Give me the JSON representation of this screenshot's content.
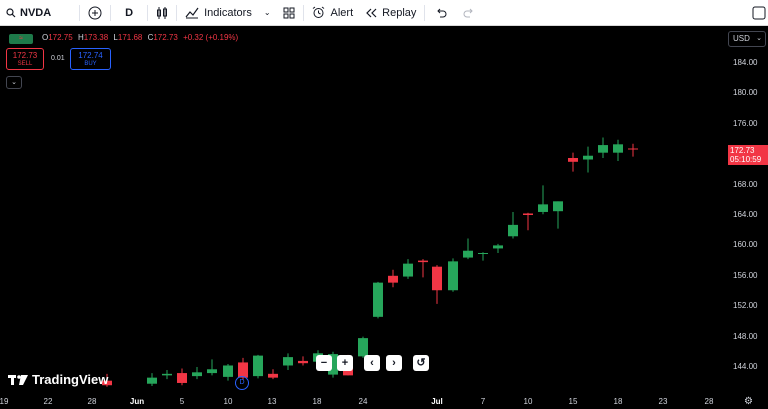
{
  "toolbar": {
    "symbol": "NVDA",
    "interval": "D",
    "indicators_label": "Indicators",
    "alert_label": "Alert",
    "replay_label": "Replay"
  },
  "legend": {
    "o_label": "O",
    "o_value": "172.75",
    "h_label": "H",
    "h_value": "173.38",
    "l_label": "L",
    "l_value": "171.68",
    "c_label": "C",
    "c_value": "172.73",
    "change": "+0.32 (+0.19%)"
  },
  "trade": {
    "sell_price": "172.73",
    "sell_label": "SELL",
    "spread": "0.01",
    "buy_price": "172.74",
    "buy_label": "BUY"
  },
  "currency": "USD",
  "price_ticks": [
    "184.00",
    "180.00",
    "176.00",
    "168.00",
    "164.00",
    "160.00",
    "156.00",
    "152.00",
    "148.00",
    "144.00"
  ],
  "last_price": {
    "value": "172.73",
    "countdown": "05:10:59"
  },
  "time_ticks": [
    "19",
    "22",
    "28",
    "Jun",
    "5",
    "10",
    "13",
    "18",
    "24",
    "Jul",
    "7",
    "10",
    "15",
    "18",
    "23",
    "28"
  ],
  "logo_text": "TradingView",
  "dividend_marker": "D",
  "colors": {
    "up": "#26a65b",
    "down": "#f23645",
    "bg": "#000000"
  },
  "chart_data": {
    "type": "candlestick",
    "y_axis_ticks": [
      144,
      148,
      152,
      156,
      160,
      164,
      168,
      176,
      180,
      184
    ],
    "candles": [
      {
        "o": 142.2,
        "h": 143.1,
        "l": 141.4,
        "c": 141.6
      },
      {
        "o": 141.8,
        "h": 143.2,
        "l": 141.5,
        "c": 142.6
      },
      {
        "o": 142.9,
        "h": 143.6,
        "l": 142.4,
        "c": 143.1
      },
      {
        "o": 143.2,
        "h": 143.8,
        "l": 141.6,
        "c": 141.9
      },
      {
        "o": 142.8,
        "h": 144.0,
        "l": 142.4,
        "c": 143.3
      },
      {
        "o": 143.2,
        "h": 145.0,
        "l": 142.9,
        "c": 143.7
      },
      {
        "o": 142.7,
        "h": 144.4,
        "l": 142.2,
        "c": 144.2
      },
      {
        "o": 144.6,
        "h": 145.2,
        "l": 142.3,
        "c": 142.6
      },
      {
        "o": 142.8,
        "h": 145.6,
        "l": 142.5,
        "c": 145.5
      },
      {
        "o": 143.1,
        "h": 143.7,
        "l": 142.4,
        "c": 142.6
      },
      {
        "o": 144.2,
        "h": 145.8,
        "l": 143.6,
        "c": 145.3
      },
      {
        "o": 144.8,
        "h": 145.4,
        "l": 144.2,
        "c": 144.5
      },
      {
        "o": 144.7,
        "h": 146.2,
        "l": 144.3,
        "c": 145.8
      },
      {
        "o": 143.0,
        "h": 146.0,
        "l": 142.6,
        "c": 145.7
      },
      {
        "o": 143.8,
        "h": 145.6,
        "l": 142.9,
        "c": 142.9
      },
      {
        "o": 145.4,
        "h": 148.0,
        "l": 145.2,
        "c": 147.8
      },
      {
        "o": 150.6,
        "h": 155.2,
        "l": 150.4,
        "c": 155.1
      },
      {
        "o": 156.0,
        "h": 156.8,
        "l": 154.5,
        "c": 155.1
      },
      {
        "o": 155.9,
        "h": 158.2,
        "l": 155.6,
        "c": 157.6
      },
      {
        "o": 158.0,
        "h": 158.2,
        "l": 155.8,
        "c": 157.8
      },
      {
        "o": 157.2,
        "h": 157.4,
        "l": 152.3,
        "c": 154.1
      },
      {
        "o": 154.1,
        "h": 158.3,
        "l": 153.9,
        "c": 157.9
      },
      {
        "o": 158.4,
        "h": 160.9,
        "l": 158.2,
        "c": 159.3
      },
      {
        "o": 158.9,
        "h": 159.1,
        "l": 158.0,
        "c": 159.0
      },
      {
        "o": 159.6,
        "h": 160.2,
        "l": 159.0,
        "c": 160.0
      },
      {
        "o": 161.2,
        "h": 164.4,
        "l": 160.9,
        "c": 162.7
      },
      {
        "o": 164.2,
        "h": 164.3,
        "l": 162.0,
        "c": 164.0
      },
      {
        "o": 164.4,
        "h": 167.9,
        "l": 164.1,
        "c": 165.4
      },
      {
        "o": 164.5,
        "h": 165.8,
        "l": 162.2,
        "c": 165.8
      },
      {
        "o": 171.5,
        "h": 172.2,
        "l": 169.7,
        "c": 171.0
      },
      {
        "o": 171.3,
        "h": 173.0,
        "l": 169.6,
        "c": 171.8
      },
      {
        "o": 172.2,
        "h": 174.2,
        "l": 171.5,
        "c": 173.2
      },
      {
        "o": 172.2,
        "h": 173.9,
        "l": 171.1,
        "c": 173.3
      },
      {
        "o": 172.75,
        "h": 173.38,
        "l": 171.68,
        "c": 172.73
      }
    ]
  }
}
